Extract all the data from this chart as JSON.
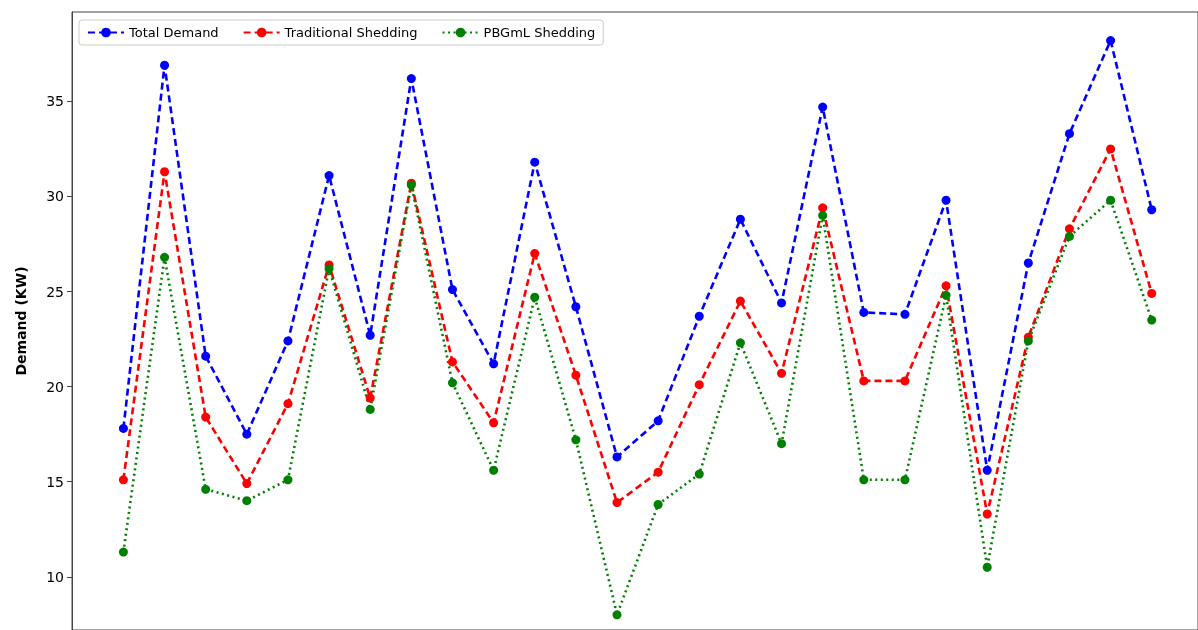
{
  "chart_data": {
    "type": "line",
    "ylabel": "Demand (KW)",
    "categories": [
      null,
      null,
      null,
      null,
      null,
      null,
      null,
      null,
      null,
      null,
      null,
      null,
      null,
      null,
      null,
      null,
      null,
      null,
      null,
      null,
      null,
      null,
      null,
      null,
      null,
      null
    ],
    "series": [
      {
        "name": "Total Demand",
        "color": "#0000ff",
        "line_style": "dashed",
        "values": [
          17.8,
          36.9,
          21.6,
          17.5,
          22.4,
          31.1,
          22.7,
          36.2,
          25.1,
          21.2,
          31.8,
          24.2,
          16.3,
          18.2,
          23.7,
          28.8,
          24.4,
          34.7,
          23.9,
          23.8,
          29.8,
          15.6,
          26.5,
          33.3,
          38.2,
          29.3
        ]
      },
      {
        "name": "Traditional Shedding",
        "color": "#ff0000",
        "line_style": "dashed",
        "values": [
          15.1,
          31.3,
          18.4,
          14.9,
          19.1,
          26.4,
          19.4,
          30.7,
          21.3,
          18.1,
          27.0,
          20.6,
          13.9,
          15.5,
          20.1,
          24.5,
          20.7,
          29.4,
          20.3,
          20.3,
          25.3,
          13.3,
          22.6,
          28.3,
          32.5,
          24.9
        ]
      },
      {
        "name": "PBGmL Shedding",
        "color": "#008000",
        "line_style": "dotted",
        "values": [
          11.3,
          26.8,
          14.6,
          14.0,
          15.1,
          26.2,
          18.8,
          30.6,
          20.2,
          15.6,
          24.7,
          17.2,
          8.0,
          13.8,
          15.4,
          22.3,
          17.0,
          29.0,
          15.1,
          15.1,
          24.8,
          10.5,
          22.4,
          27.9,
          29.8,
          23.5
        ]
      }
    ],
    "ylim": [
      7.2,
      39.7
    ],
    "yticks": [
      10,
      15,
      20,
      25,
      30,
      35
    ],
    "legend": "top left",
    "marker": "circle",
    "tick_labels": "y"
  }
}
